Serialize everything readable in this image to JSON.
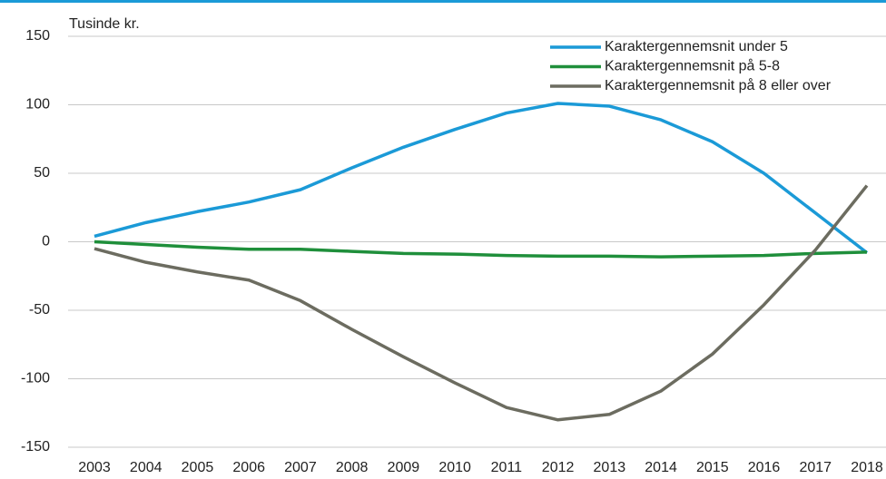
{
  "chart_data": {
    "type": "line",
    "y_label": "Tusinde kr.",
    "categories": [
      "2003",
      "2004",
      "2005",
      "2006",
      "2007",
      "2008",
      "2009",
      "2010",
      "2011",
      "2012",
      "2013",
      "2014",
      "2015",
      "2016",
      "2017",
      "2018"
    ],
    "series": [
      {
        "name": "Karaktergennemsnit under 5",
        "color": "#1b9ad7",
        "values": [
          4,
          14,
          22,
          29,
          38,
          54,
          69,
          82,
          94,
          101,
          99,
          89,
          73,
          50,
          21,
          -8
        ]
      },
      {
        "name": "Karaktergennemsnit på 5-8",
        "color": "#1f8f3b",
        "values": [
          0,
          -2,
          -4,
          -5.5,
          -5.5,
          -7,
          -8.5,
          -9,
          -10,
          -10.5,
          -10.5,
          -11,
          -10.5,
          -10,
          -8.5,
          -7.5
        ]
      },
      {
        "name": "Karaktergennemsnit på 8 eller over",
        "color": "#6c6c60",
        "values": [
          -5,
          -15,
          -22,
          -28,
          -43,
          -64,
          -84,
          -103,
          -121,
          -130,
          -126,
          -109,
          -82,
          -46,
          -6,
          41
        ]
      }
    ],
    "ylim": [
      -150,
      150
    ],
    "yticks": [
      -150,
      -100,
      -50,
      0,
      50,
      100,
      150
    ],
    "grid": true,
    "legend": "top-right"
  }
}
